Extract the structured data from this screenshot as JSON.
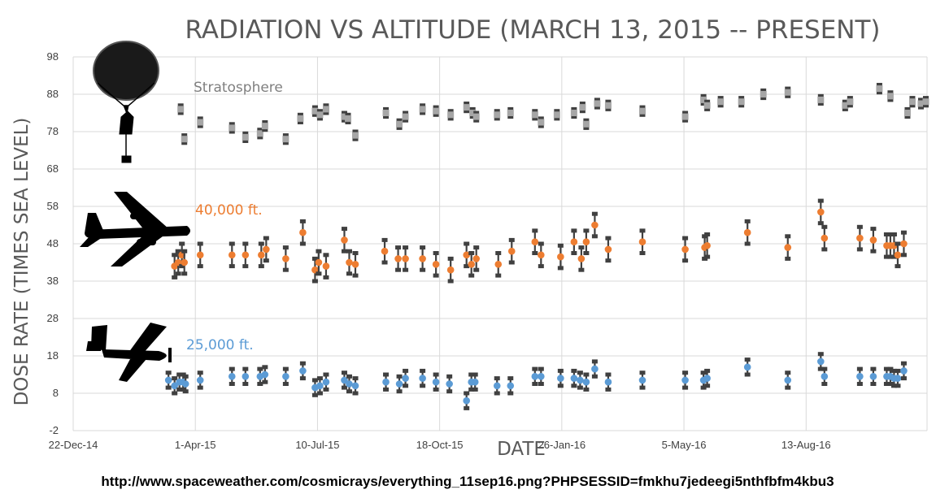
{
  "chart_data": {
    "type": "scatter",
    "title": "RADIATION VS ALTITUDE (MARCH 13, 2015 -- PRESENT)",
    "xlabel": "DATE",
    "ylabel": "DOSE RATE (TIMES SEA LEVEL)",
    "x_ticks": [
      "22-Dec-14",
      "1-Apr-15",
      "10-Jul-15",
      "18-Oct-15",
      "26-Jan-16",
      "5-May-16",
      "13-Aug-16"
    ],
    "y_ticks": [
      98,
      88,
      78,
      68,
      58,
      48,
      38,
      28,
      18,
      8,
      -2
    ],
    "xlim": [
      "2014-12-22",
      "2016-11-20"
    ],
    "ylim": [
      -2,
      98
    ],
    "grid": true,
    "legend": "inline labels",
    "source": "http://www.spaceweather.com/cosmicrays/everything_11sep16.png?PHPSESSID=fmkhu7jedeegi5nthfbfm4kbu3",
    "series": [
      {
        "name": "Stratosphere",
        "color": "#a6a6a6",
        "icon": "balloon-icon",
        "points": [
          {
            "x": "2015-03-20",
            "y": 84,
            "err": 1
          },
          {
            "x": "2015-03-23",
            "y": 76,
            "err": 1
          },
          {
            "x": "2015-04-05",
            "y": 80.5,
            "err": 1
          },
          {
            "x": "2015-05-01",
            "y": 79,
            "err": 1
          },
          {
            "x": "2015-05-12",
            "y": 76.5,
            "err": 1
          },
          {
            "x": "2015-05-24",
            "y": 77.5,
            "err": 1
          },
          {
            "x": "2015-05-28",
            "y": 79.5,
            "err": 1
          },
          {
            "x": "2015-06-14",
            "y": 76,
            "err": 1
          },
          {
            "x": "2015-06-26",
            "y": 81.5,
            "err": 1
          },
          {
            "x": "2015-07-08",
            "y": 83.5,
            "err": 1
          },
          {
            "x": "2015-07-12",
            "y": 82.5,
            "err": 1
          },
          {
            "x": "2015-07-17",
            "y": 84,
            "err": 1
          },
          {
            "x": "2015-08-01",
            "y": 82,
            "err": 1
          },
          {
            "x": "2015-08-04",
            "y": 81.5,
            "err": 1
          },
          {
            "x": "2015-08-10",
            "y": 77,
            "err": 1
          },
          {
            "x": "2015-09-04",
            "y": 83,
            "err": 1
          },
          {
            "x": "2015-09-15",
            "y": 80,
            "err": 1
          },
          {
            "x": "2015-09-20",
            "y": 82,
            "err": 1
          },
          {
            "x": "2015-10-04",
            "y": 84,
            "err": 1
          },
          {
            "x": "2015-10-15",
            "y": 83.5,
            "err": 1
          },
          {
            "x": "2015-10-27",
            "y": 82.5,
            "err": 1
          },
          {
            "x": "2015-11-09",
            "y": 84.5,
            "err": 1
          },
          {
            "x": "2015-11-14",
            "y": 83,
            "err": 1
          },
          {
            "x": "2015-11-17",
            "y": 82,
            "err": 1
          },
          {
            "x": "2015-12-04",
            "y": 82.5,
            "err": 1
          },
          {
            "x": "2015-12-15",
            "y": 83,
            "err": 1
          },
          {
            "x": "2016-01-04",
            "y": 82.5,
            "err": 1
          },
          {
            "x": "2016-01-09",
            "y": 80.5,
            "err": 1
          },
          {
            "x": "2016-01-22",
            "y": 82.5,
            "err": 1
          },
          {
            "x": "2016-02-05",
            "y": 83,
            "err": 1
          },
          {
            "x": "2016-02-12",
            "y": 84.5,
            "err": 1
          },
          {
            "x": "2016-02-15",
            "y": 80,
            "err": 1
          },
          {
            "x": "2016-02-24",
            "y": 85.5,
            "err": 1
          },
          {
            "x": "2016-03-04",
            "y": 85,
            "err": 1
          },
          {
            "x": "2016-04-01",
            "y": 83.5,
            "err": 1
          },
          {
            "x": "2016-05-06",
            "y": 82,
            "err": 1
          },
          {
            "x": "2016-05-21",
            "y": 86.5,
            "err": 1
          },
          {
            "x": "2016-05-24",
            "y": 85,
            "err": 1
          },
          {
            "x": "2016-06-04",
            "y": 86,
            "err": 1
          },
          {
            "x": "2016-06-21",
            "y": 86,
            "err": 1
          },
          {
            "x": "2016-07-09",
            "y": 88,
            "err": 1
          },
          {
            "x": "2016-07-29",
            "y": 88.5,
            "err": 1
          },
          {
            "x": "2016-08-25",
            "y": 86.5,
            "err": 1
          },
          {
            "x": "2016-09-14",
            "y": 85,
            "err": 1
          },
          {
            "x": "2016-09-18",
            "y": 86,
            "err": 1
          },
          {
            "x": "2016-10-12",
            "y": 89.5,
            "err": 1
          },
          {
            "x": "2016-10-21",
            "y": 87.5,
            "err": 1
          },
          {
            "x": "2016-11-04",
            "y": 83,
            "err": 1
          },
          {
            "x": "2016-11-08",
            "y": 86,
            "err": 1
          },
          {
            "x": "2016-11-15",
            "y": 85.5,
            "err": 1
          },
          {
            "x": "2016-11-19",
            "y": 86,
            "err": 1
          }
        ]
      },
      {
        "name": "40,000 ft.",
        "color": "#ed7d31",
        "icon": "jet-airliner-icon",
        "points": [
          {
            "x": "2015-03-15",
            "y": 42,
            "err": 3
          },
          {
            "x": "2015-03-18",
            "y": 43,
            "err": 3
          },
          {
            "x": "2015-03-21",
            "y": 45,
            "err": 3
          },
          {
            "x": "2015-03-23",
            "y": 43,
            "err": 3
          },
          {
            "x": "2015-04-05",
            "y": 45,
            "err": 3
          },
          {
            "x": "2015-05-01",
            "y": 45,
            "err": 3
          },
          {
            "x": "2015-05-12",
            "y": 45,
            "err": 3
          },
          {
            "x": "2015-05-25",
            "y": 45,
            "err": 3
          },
          {
            "x": "2015-05-29",
            "y": 46.5,
            "err": 3
          },
          {
            "x": "2015-06-14",
            "y": 44,
            "err": 3
          },
          {
            "x": "2015-06-28",
            "y": 51,
            "err": 3
          },
          {
            "x": "2015-07-08",
            "y": 41,
            "err": 3
          },
          {
            "x": "2015-07-11",
            "y": 43,
            "err": 3
          },
          {
            "x": "2015-07-17",
            "y": 42,
            "err": 3
          },
          {
            "x": "2015-08-01",
            "y": 49,
            "err": 3
          },
          {
            "x": "2015-08-05",
            "y": 43,
            "err": 3
          },
          {
            "x": "2015-08-10",
            "y": 42.5,
            "err": 3
          },
          {
            "x": "2015-09-03",
            "y": 46,
            "err": 3
          },
          {
            "x": "2015-09-14",
            "y": 44,
            "err": 3
          },
          {
            "x": "2015-09-20",
            "y": 44,
            "err": 3
          },
          {
            "x": "2015-10-04",
            "y": 44,
            "err": 3
          },
          {
            "x": "2015-10-15",
            "y": 42.5,
            "err": 3
          },
          {
            "x": "2015-10-27",
            "y": 41,
            "err": 3
          },
          {
            "x": "2015-11-09",
            "y": 45,
            "err": 3
          },
          {
            "x": "2015-11-13",
            "y": 42.5,
            "err": 3
          },
          {
            "x": "2015-11-17",
            "y": 44,
            "err": 3
          },
          {
            "x": "2015-12-05",
            "y": 42.5,
            "err": 3
          },
          {
            "x": "2015-12-16",
            "y": 46,
            "err": 3
          },
          {
            "x": "2016-01-04",
            "y": 48.5,
            "err": 3
          },
          {
            "x": "2016-01-09",
            "y": 45,
            "err": 3
          },
          {
            "x": "2016-01-25",
            "y": 44.5,
            "err": 3
          },
          {
            "x": "2016-02-05",
            "y": 48.5,
            "err": 3
          },
          {
            "x": "2016-02-11",
            "y": 44,
            "err": 3
          },
          {
            "x": "2016-02-15",
            "y": 48.5,
            "err": 3
          },
          {
            "x": "2016-02-22",
            "y": 53,
            "err": 3
          },
          {
            "x": "2016-03-04",
            "y": 46.5,
            "err": 3
          },
          {
            "x": "2016-04-01",
            "y": 48.5,
            "err": 3
          },
          {
            "x": "2016-05-06",
            "y": 46.5,
            "err": 3
          },
          {
            "x": "2016-05-22",
            "y": 47,
            "err": 3
          },
          {
            "x": "2016-05-24",
            "y": 47.5,
            "err": 3
          },
          {
            "x": "2016-06-26",
            "y": 51,
            "err": 3
          },
          {
            "x": "2016-07-29",
            "y": 47,
            "err": 3
          },
          {
            "x": "2016-08-25",
            "y": 56.5,
            "err": 3
          },
          {
            "x": "2016-08-28",
            "y": 49.5,
            "err": 3
          },
          {
            "x": "2016-09-26",
            "y": 49.5,
            "err": 3
          },
          {
            "x": "2016-10-07",
            "y": 49,
            "err": 3
          },
          {
            "x": "2016-10-18",
            "y": 47.5,
            "err": 3
          },
          {
            "x": "2016-10-21",
            "y": 47.5,
            "err": 3
          },
          {
            "x": "2016-10-24",
            "y": 47.5,
            "err": 3
          },
          {
            "x": "2016-10-27",
            "y": 45,
            "err": 3
          },
          {
            "x": "2016-11-01",
            "y": 48,
            "err": 3
          }
        ]
      },
      {
        "name": "25,000 ft.",
        "color": "#5b9bd5",
        "icon": "propeller-plane-icon",
        "points": [
          {
            "x": "2015-03-10",
            "y": 11.5,
            "err": 2
          },
          {
            "x": "2015-03-15",
            "y": 10,
            "err": 2
          },
          {
            "x": "2015-03-19",
            "y": 11,
            "err": 2
          },
          {
            "x": "2015-03-22",
            "y": 11,
            "err": 2
          },
          {
            "x": "2015-03-24",
            "y": 10.5,
            "err": 2
          },
          {
            "x": "2015-04-05",
            "y": 11.5,
            "err": 2
          },
          {
            "x": "2015-05-01",
            "y": 12.5,
            "err": 2
          },
          {
            "x": "2015-05-12",
            "y": 12.5,
            "err": 2
          },
          {
            "x": "2015-05-24",
            "y": 12.5,
            "err": 2
          },
          {
            "x": "2015-05-28",
            "y": 13,
            "err": 2
          },
          {
            "x": "2015-06-14",
            "y": 12.5,
            "err": 2
          },
          {
            "x": "2015-06-28",
            "y": 14,
            "err": 2
          },
          {
            "x": "2015-07-08",
            "y": 9.5,
            "err": 2
          },
          {
            "x": "2015-07-12",
            "y": 10,
            "err": 2
          },
          {
            "x": "2015-07-17",
            "y": 11,
            "err": 2
          },
          {
            "x": "2015-08-01",
            "y": 11.5,
            "err": 2
          },
          {
            "x": "2015-08-05",
            "y": 10.5,
            "err": 2
          },
          {
            "x": "2015-08-10",
            "y": 10,
            "err": 2
          },
          {
            "x": "2015-09-04",
            "y": 11,
            "err": 2
          },
          {
            "x": "2015-09-15",
            "y": 10.5,
            "err": 2
          },
          {
            "x": "2015-09-20",
            "y": 12,
            "err": 2
          },
          {
            "x": "2015-10-04",
            "y": 12,
            "err": 2
          },
          {
            "x": "2015-10-15",
            "y": 11,
            "err": 2
          },
          {
            "x": "2015-10-26",
            "y": 10.5,
            "err": 2
          },
          {
            "x": "2015-11-09",
            "y": 6,
            "err": 2
          },
          {
            "x": "2015-11-13",
            "y": 11,
            "err": 2
          },
          {
            "x": "2015-11-16",
            "y": 11,
            "err": 2
          },
          {
            "x": "2015-12-04",
            "y": 10,
            "err": 2
          },
          {
            "x": "2015-12-15",
            "y": 10,
            "err": 2
          },
          {
            "x": "2016-01-04",
            "y": 12.5,
            "err": 2
          },
          {
            "x": "2016-01-09",
            "y": 12.5,
            "err": 2
          },
          {
            "x": "2016-01-25",
            "y": 12,
            "err": 2
          },
          {
            "x": "2016-02-05",
            "y": 12,
            "err": 2
          },
          {
            "x": "2016-02-10",
            "y": 11.5,
            "err": 2
          },
          {
            "x": "2016-02-15",
            "y": 11,
            "err": 2
          },
          {
            "x": "2016-02-22",
            "y": 14.5,
            "err": 2
          },
          {
            "x": "2016-03-04",
            "y": 11,
            "err": 2
          },
          {
            "x": "2016-04-01",
            "y": 11.5,
            "err": 2
          },
          {
            "x": "2016-05-06",
            "y": 11.5,
            "err": 2
          },
          {
            "x": "2016-05-21",
            "y": 11.5,
            "err": 2
          },
          {
            "x": "2016-05-24",
            "y": 12,
            "err": 2
          },
          {
            "x": "2016-06-26",
            "y": 15,
            "err": 2
          },
          {
            "x": "2016-07-29",
            "y": 11.5,
            "err": 2
          },
          {
            "x": "2016-08-25",
            "y": 16.5,
            "err": 2
          },
          {
            "x": "2016-08-28",
            "y": 12.5,
            "err": 2
          },
          {
            "x": "2016-09-26",
            "y": 12.5,
            "err": 2
          },
          {
            "x": "2016-10-07",
            "y": 12.5,
            "err": 2
          },
          {
            "x": "2016-10-18",
            "y": 12.5,
            "err": 2
          },
          {
            "x": "2016-10-21",
            "y": 12.5,
            "err": 2
          },
          {
            "x": "2016-10-24",
            "y": 12,
            "err": 2
          },
          {
            "x": "2016-10-27",
            "y": 12,
            "err": 2
          },
          {
            "x": "2016-11-01",
            "y": 14,
            "err": 2
          }
        ]
      }
    ]
  },
  "colors": {
    "error_bar": "#404040",
    "gridline": "#d9d9d9",
    "axis_text": "#404040",
    "title": "#595959",
    "silhouette": "#000000"
  }
}
